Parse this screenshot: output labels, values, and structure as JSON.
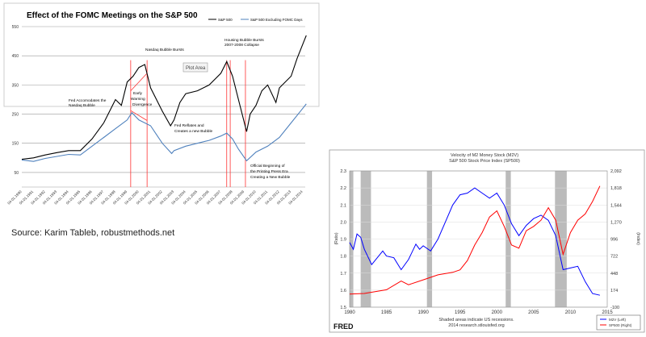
{
  "chart_data": [
    {
      "type": "line",
      "title": "Effect of the FOMC Meetings on the S&P 500",
      "ylim": [
        0,
        550
      ],
      "yticks": [
        550,
        450,
        350,
        250,
        150,
        50
      ],
      "xlim": [
        1990,
        2014
      ],
      "xtick_labels": [
        "04.01.1990",
        "04.01.1991",
        "04.01.1992",
        "04.01.1993",
        "04.01.1994",
        "04.01.1995",
        "04.01.1996",
        "04.01.1997",
        "04.01.1998",
        "04.01.1999",
        "04.01.2000",
        "04.01.2001",
        "04.01.2002",
        "04.01.2003",
        "04.01.2004",
        "04.01.2005",
        "04.01.2006",
        "04.01.2007",
        "04.01.2008",
        "04.01.2009",
        "04.01.2010",
        "04.01.2011",
        "04.01.2012",
        "04.01.2013",
        "04.01.2014"
      ],
      "legend": "top-right",
      "series": [
        {
          "name": "S&P 500",
          "color": "#000000",
          "x": [
            1990,
            1991,
            1992,
            1993,
            1994,
            1995,
            1996,
            1997,
            1998,
            1998.5,
            1999,
            1999.5,
            2000,
            2000.5,
            2001,
            2001.5,
            2002,
            2002.7,
            2003,
            2003.5,
            2004,
            2005,
            2006,
            2006.5,
            2007,
            2007.5,
            2008,
            2008.5,
            2009.2,
            2009.5,
            2010,
            2010.5,
            2011,
            2011.7,
            2012,
            2013,
            2013.5,
            2014,
            2014.3
          ],
          "y": [
            95,
            100,
            110,
            118,
            125,
            125,
            165,
            220,
            300,
            280,
            360,
            380,
            410,
            420,
            340,
            300,
            260,
            210,
            230,
            290,
            320,
            330,
            350,
            370,
            390,
            430,
            380,
            300,
            190,
            250,
            280,
            330,
            350,
            290,
            340,
            380,
            440,
            490,
            520
          ]
        },
        {
          "name": "S&P 500 Excluding FOMC Days",
          "color": "#4f81bd",
          "x": [
            1990,
            1991,
            1992,
            1993,
            1994,
            1995,
            1996,
            1997,
            1998,
            1999,
            1999.4,
            2000,
            2001,
            2001.5,
            2002,
            2002.8,
            2003,
            2004,
            2005,
            2006,
            2007,
            2007.5,
            2008,
            2008.5,
            2009.2,
            2010,
            2011,
            2012,
            2013,
            2014,
            2014.3
          ],
          "y": [
            93,
            88,
            98,
            105,
            112,
            110,
            140,
            170,
            200,
            230,
            255,
            230,
            210,
            180,
            150,
            115,
            125,
            140,
            150,
            160,
            175,
            185,
            165,
            130,
            90,
            120,
            140,
            170,
            220,
            270,
            285
          ]
        }
      ],
      "vertical_markers": [
        1999.3,
        2000.7,
        2007.5,
        2007.8,
        2009.1
      ],
      "annotations": [
        "Nasdaq Bubble  Bursts",
        "Housing Bubble Bursts",
        "2007-2008 Collapse",
        "Plot Area",
        "Fed Accomodates  the",
        "Nasdaq Bubble",
        "Early",
        "Warning",
        "Divergence",
        "Fed Reflates and",
        "Creates a new Bubble",
        "Official Beginning  of",
        "the Printing Press Era",
        "Creating a New Bubble"
      ]
    },
    {
      "type": "line",
      "title": "Velocity of M2 Money Stock (M2V)",
      "subtitle": "S&P 500 Stock Price Index (SP500)",
      "ylabel": "(Ratio)",
      "ylabel_right": "(Index)",
      "ylim": [
        1.5,
        2.3
      ],
      "ylim_right": [
        -100,
        2092
      ],
      "yticks": [
        "2.3",
        "2.2",
        "2.1",
        "2.0",
        "1.9",
        "1.8",
        "1.7",
        "1.6",
        "1.5"
      ],
      "yticks_right": [
        "2,092",
        "1,818",
        "1,544",
        "1,270",
        "996",
        "722",
        "448",
        "174",
        "-100"
      ],
      "xlim": [
        1980,
        2015
      ],
      "xticks": [
        "1980",
        "1985",
        "1990",
        "1995",
        "2000",
        "2005",
        "2010",
        "2015"
      ],
      "recessions": [
        [
          1980.0,
          1980.5
        ],
        [
          1981.5,
          1982.9
        ],
        [
          1990.5,
          1991.2
        ],
        [
          2001.2,
          2001.9
        ],
        [
          2007.9,
          2009.5
        ]
      ],
      "legend": "bottom-right",
      "series": [
        {
          "name": "M2V (Left)",
          "color": "#0000ff",
          "axis": "left",
          "x": [
            1980,
            1980.5,
            1981,
            1981.5,
            1982,
            1983,
            1984.5,
            1985,
            1986,
            1987,
            1988,
            1989,
            1989.5,
            1990,
            1991,
            1992,
            1993,
            1994,
            1995,
            1996,
            1997,
            1998,
            1999,
            2000,
            2001,
            2002,
            2003,
            2004,
            2005,
            2006,
            2007,
            2008,
            2009,
            2010,
            2011,
            2012,
            2013,
            2014
          ],
          "y": [
            1.88,
            1.84,
            1.93,
            1.91,
            1.84,
            1.75,
            1.83,
            1.8,
            1.79,
            1.72,
            1.78,
            1.87,
            1.84,
            1.86,
            1.83,
            1.9,
            2.0,
            2.1,
            2.16,
            2.17,
            2.2,
            2.17,
            2.14,
            2.17,
            2.1,
            1.99,
            1.92,
            1.98,
            2.02,
            2.04,
            2.01,
            1.92,
            1.72,
            1.73,
            1.74,
            1.65,
            1.58,
            1.57
          ]
        },
        {
          "name": "SP500 (Right)",
          "color": "#ff0000",
          "axis": "right",
          "x": [
            1980,
            1982,
            1985,
            1987,
            1988,
            1990,
            1992,
            1994,
            1995,
            1996,
            1997,
            1998,
            1999,
            2000,
            2001,
            2002,
            2003,
            2004,
            2005,
            2006,
            2007,
            2008,
            2009,
            2010,
            2011,
            2012,
            2013,
            2014
          ],
          "y": [
            110,
            120,
            180,
            320,
            260,
            340,
            420,
            460,
            500,
            650,
            900,
            1100,
            1350,
            1450,
            1200,
            900,
            850,
            1130,
            1200,
            1300,
            1500,
            1300,
            750,
            1100,
            1300,
            1400,
            1600,
            1850
          ]
        }
      ],
      "footer": [
        "Shaded areas indicate US recessions.",
        "2014 research.stlouisfed.org"
      ],
      "logo": "FRED"
    }
  ],
  "source": "Source: Karim Tableb, robustmethods.net"
}
